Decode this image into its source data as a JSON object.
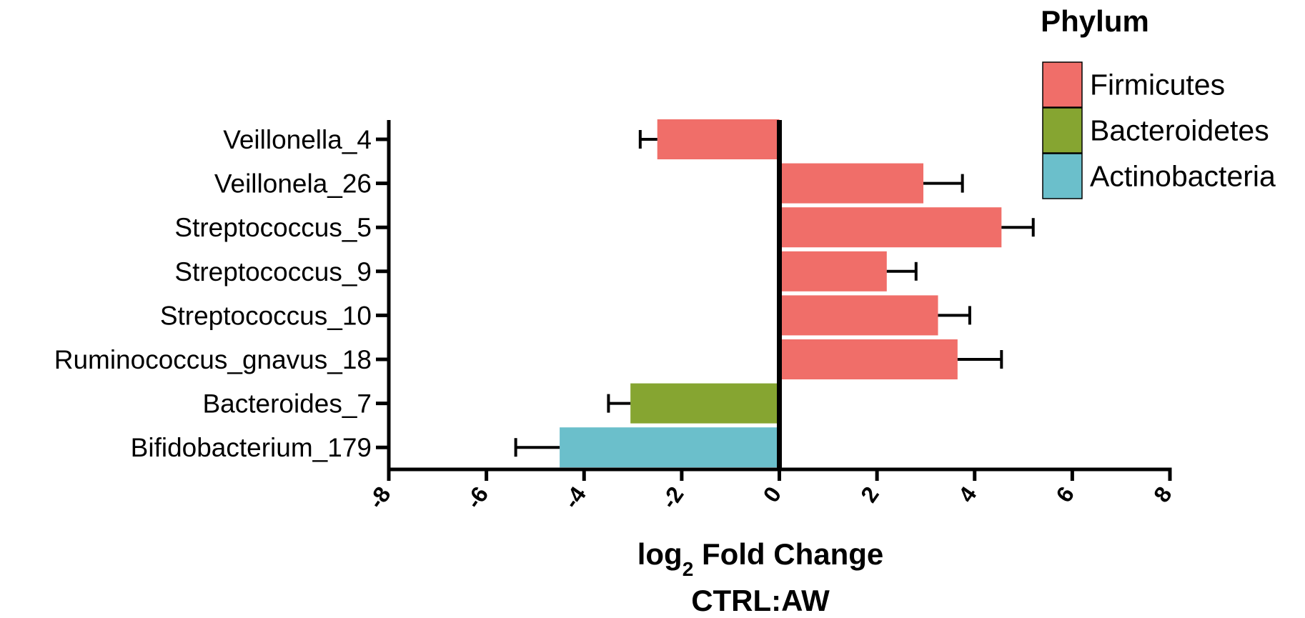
{
  "chart_data": {
    "type": "bar",
    "orientation": "horizontal",
    "categories": [
      "Veillonella_4",
      "Veillonela_26",
      "Streptococcus_5",
      "Streptococcus_9",
      "Streptococcus_10",
      "Ruminococcus_gnavus_18",
      "Bacteroides_7",
      "Bifidobacterium_179"
    ],
    "values": [
      -2.5,
      2.95,
      4.55,
      2.2,
      3.25,
      3.65,
      -3.05,
      -4.5
    ],
    "error_bars": [
      0.35,
      0.8,
      0.65,
      0.6,
      0.65,
      0.9,
      0.45,
      0.9
    ],
    "phylum": [
      "Firmicutes",
      "Firmicutes",
      "Firmicutes",
      "Firmicutes",
      "Firmicutes",
      "Firmicutes",
      "Bacteroidetes",
      "Actinobacteria"
    ],
    "xlabel_main": "log",
    "xlabel_sub": "2",
    "xlabel_rest": " Fold Change",
    "xlabel_line2": "CTRL:AW",
    "xlim": [
      -8,
      8
    ],
    "xticks": [
      "-8",
      "-6",
      "-4",
      "-2",
      "0",
      "2",
      "4",
      "6",
      "8"
    ],
    "grid": false,
    "legend": {
      "title": "Phylum",
      "placement": "top-right",
      "entries": [
        {
          "name": "Firmicutes",
          "color": "#F06E69"
        },
        {
          "name": "Bacteroidetes",
          "color": "#86A531"
        },
        {
          "name": "Actinobacteria",
          "color": "#6BBFCB"
        }
      ]
    }
  }
}
